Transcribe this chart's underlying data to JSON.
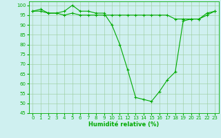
{
  "xlabel": "Humidité relative (%)",
  "background_color": "#cff0f0",
  "line_color": "#00aa00",
  "marker": "+",
  "xlim": [
    -0.5,
    23.5
  ],
  "ylim": [
    45,
    102
  ],
  "yticks": [
    45,
    50,
    55,
    60,
    65,
    70,
    75,
    80,
    85,
    90,
    95,
    100
  ],
  "xticks": [
    0,
    1,
    2,
    3,
    4,
    5,
    6,
    7,
    8,
    9,
    10,
    11,
    12,
    13,
    14,
    15,
    16,
    17,
    18,
    19,
    20,
    21,
    22,
    23
  ],
  "series1_x": [
    0,
    1,
    2,
    3,
    4,
    5,
    6,
    7,
    8,
    9,
    10,
    11,
    12,
    13,
    14,
    15,
    16,
    17,
    18,
    19,
    20,
    21,
    22,
    23
  ],
  "series1_y": [
    97,
    98,
    96,
    96,
    97,
    100,
    97,
    97,
    96,
    96,
    90,
    80,
    67,
    53,
    52,
    51,
    56,
    62,
    66,
    92,
    93,
    93,
    96,
    97
  ],
  "series2_x": [
    0,
    1,
    2,
    3,
    4,
    5,
    6,
    7,
    8,
    9,
    10,
    11,
    12,
    13,
    14,
    15,
    16,
    17,
    18,
    19,
    20,
    21,
    22,
    23
  ],
  "series2_y": [
    97,
    97,
    96,
    96,
    95,
    96,
    95,
    95,
    95,
    95,
    95,
    95,
    95,
    95,
    95,
    95,
    95,
    95,
    93,
    93,
    93,
    93,
    95,
    97
  ],
  "grid_color": "#99cc99",
  "xlabel_fontsize": 6.0,
  "tick_fontsize": 5.0,
  "linewidth": 0.8,
  "markersize": 3.0,
  "markeredgewidth": 0.8
}
